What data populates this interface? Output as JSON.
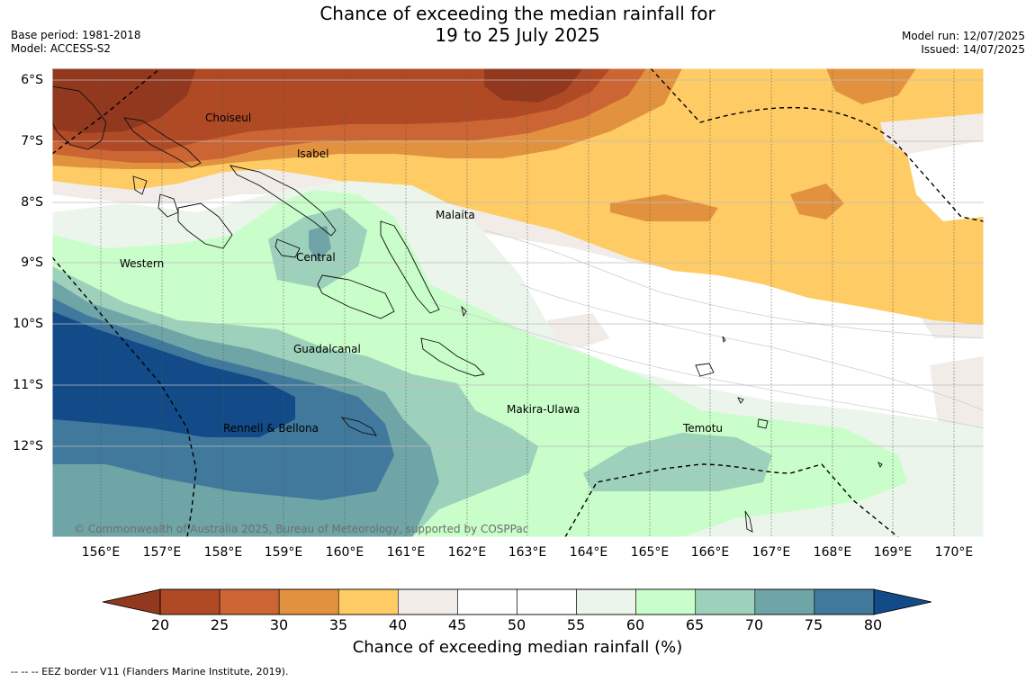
{
  "title": {
    "line1": "Chance of exceeding the median rainfall for",
    "line2": "19 to 25 July 2025"
  },
  "meta_left": {
    "base_period": "Base period: 1981-2018",
    "model": "Model: ACCESS-S2"
  },
  "meta_right": {
    "model_run": "Model run: 12/07/2025",
    "issued": "Issued: 14/07/2025"
  },
  "map": {
    "lat_labels": [
      "6°S",
      "7°S",
      "8°S",
      "9°S",
      "10°S",
      "11°S",
      "12°S"
    ],
    "lon_labels": [
      "156°E",
      "157°E",
      "158°E",
      "159°E",
      "160°E",
      "161°E",
      "162°E",
      "163°E",
      "164°E",
      "165°E",
      "166°E",
      "167°E",
      "168°E",
      "169°E",
      "170°E"
    ],
    "regions": [
      "Choiseul",
      "Isabel",
      "Malaita",
      "Western",
      "Central",
      "Guadalcanal",
      "Makira-Ulawa",
      "Temotu",
      "Rennell & Bellona"
    ],
    "copyright": "© Commonwealth of Australia 2025, Bureau of Meteorology, supported by COSPPac"
  },
  "colorbar": {
    "ticks": [
      "20",
      "25",
      "30",
      "35",
      "40",
      "45",
      "50",
      "55",
      "60",
      "65",
      "70",
      "75",
      "80"
    ],
    "colors": [
      "#b04a25",
      "#cb6534",
      "#e2923f",
      "#fecb64",
      "#f1ece8",
      "#ffffff",
      "#ffffff",
      "#ebf5ec",
      "#c9fdc9",
      "#9dd1bb",
      "#6fa5a6",
      "#40799c"
    ],
    "under_color": "#92381f",
    "over_color": "#124b87",
    "label": "Chance of exceeding median rainfall (%)"
  },
  "footnote": "--  --  -- EEZ border V11 (Flanders Marine Institute, 2019)."
}
